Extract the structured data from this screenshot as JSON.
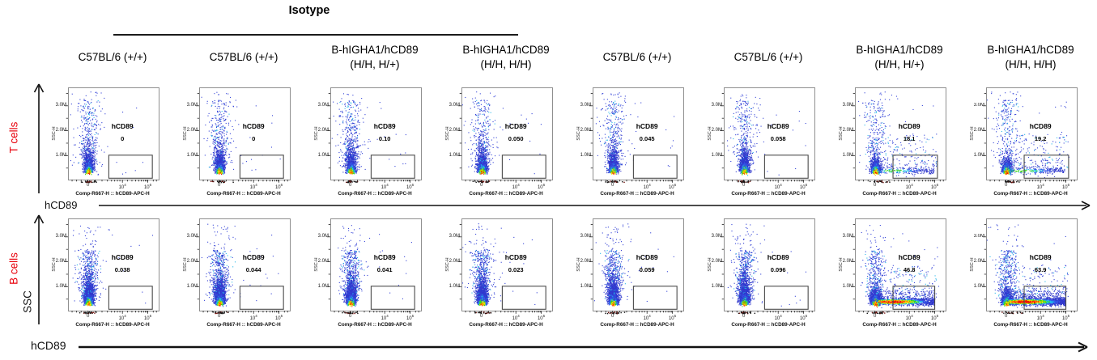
{
  "figure": {
    "title_group": "Isotype",
    "row_labels": [
      "T cells",
      "B cells"
    ],
    "x_axis_group_label": "hCD89",
    "y_axis_group_label": "SSC",
    "row_label_color": "#e8000b"
  },
  "chart_data": {
    "type": "scatter",
    "subtype": "flow-cytometry-pseudocolor-density",
    "description": "16 flow cytometry dot plots (2 rows x 8 columns). Each shows SSC-H vs hCD89-APC-H with a rectangular hCD89+ gate at lower right and the gated percentage. Only B-hIGHA1/hCD89 humanized mice stained with anti-hCD89 (non-isotype, right columns) show hCD89+ populations.",
    "columns": [
      "C57BL/6 (+/+)",
      "C57BL/6 (+/+)",
      "B-hIGHA1/hCD89\n(H/H, H/+)",
      "B-hIGHA1/hCD89\n(H/H, H/H)",
      "C57BL/6 (+/+)",
      "C57BL/6 (+/+)",
      "B-hIGHA1/hCD89\n(H/H, H/+)",
      "B-hIGHA1/hCD89\n(H/H, H/H)"
    ],
    "isotype_span_columns": [
      1,
      2,
      3,
      4
    ],
    "x_axis_label": "Comp-R667-H :: hCD89-APC-H",
    "y_axis_label": "SSC-H",
    "y_ticks": [
      "1.0M",
      "2.0M",
      "3.0M"
    ],
    "x_ticks_row1": [
      "0",
      "10^4",
      "10^6"
    ],
    "x_ticks_row2": [
      "0",
      "10^4",
      "10^5"
    ],
    "panels": [
      {
        "row": "T cells",
        "column": "C57BL/6 (+/+)",
        "gate_label": "hCD89",
        "gate_value": "0",
        "gated_percent": 0
      },
      {
        "row": "T cells",
        "column": "C57BL/6 (+/+)",
        "gate_label": "hCD89",
        "gate_value": "0",
        "gated_percent": 0
      },
      {
        "row": "T cells",
        "column": "B-hIGHA1/hCD89 (H/H, H/+)",
        "gate_label": "hCD89",
        "gate_value": "0.10",
        "gated_percent": 0.1
      },
      {
        "row": "T cells",
        "column": "B-hIGHA1/hCD89 (H/H, H/H)",
        "gate_label": "hCD89",
        "gate_value": "0.050",
        "gated_percent": 0.05
      },
      {
        "row": "T cells",
        "column": "C57BL/6 (+/+)",
        "gate_label": "hCD89",
        "gate_value": "0.045",
        "gated_percent": 0.045
      },
      {
        "row": "T cells",
        "column": "C57BL/6 (+/+)",
        "gate_label": "hCD89",
        "gate_value": "0.058",
        "gated_percent": 0.058
      },
      {
        "row": "T cells",
        "column": "B-hIGHA1/hCD89 (H/H, H/+)",
        "gate_label": "hCD89",
        "gate_value": "18.1",
        "gated_percent": 18.1
      },
      {
        "row": "T cells",
        "column": "B-hIGHA1/hCD89 (H/H, H/H)",
        "gate_label": "hCD89",
        "gate_value": "19.2",
        "gated_percent": 19.2
      },
      {
        "row": "B cells",
        "column": "C57BL/6 (+/+)",
        "gate_label": "hCD89",
        "gate_value": "0.038",
        "gated_percent": 0.038
      },
      {
        "row": "B cells",
        "column": "C57BL/6 (+/+)",
        "gate_label": "hCD89",
        "gate_value": "0.044",
        "gated_percent": 0.044
      },
      {
        "row": "B cells",
        "column": "B-hIGHA1/hCD89 (H/H, H/+)",
        "gate_label": "hCD89",
        "gate_value": "0.041",
        "gated_percent": 0.041
      },
      {
        "row": "B cells",
        "column": "B-hIGHA1/hCD89 (H/H, H/H)",
        "gate_label": "hCD89",
        "gate_value": "0.023",
        "gated_percent": 0.023
      },
      {
        "row": "B cells",
        "column": "C57BL/6 (+/+)",
        "gate_label": "hCD89",
        "gate_value": "0.059",
        "gated_percent": 0.059
      },
      {
        "row": "B cells",
        "column": "C57BL/6 (+/+)",
        "gate_label": "hCD89",
        "gate_value": "0.096",
        "gated_percent": 0.096
      },
      {
        "row": "B cells",
        "column": "B-hIGHA1/hCD89 (H/H, H/+)",
        "gate_label": "hCD89",
        "gate_value": "46.8",
        "gated_percent": 46.8
      },
      {
        "row": "B cells",
        "column": "B-hIGHA1/hCD89 (H/H, H/H)",
        "gate_label": "hCD89",
        "gate_value": "63.9",
        "gated_percent": 63.9
      }
    ]
  }
}
